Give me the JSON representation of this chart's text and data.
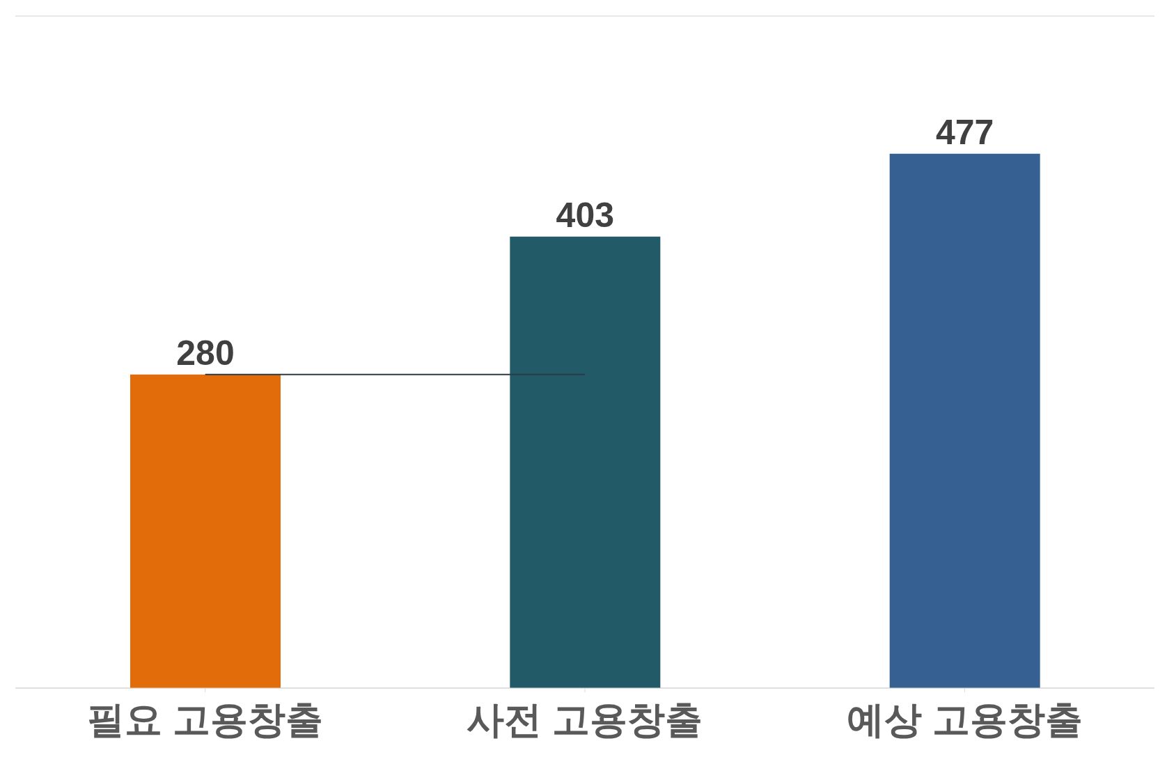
{
  "chart_data": {
    "type": "bar",
    "categories": [
      "필요 고용창출",
      "사전 고용창출",
      "예상 고용창출"
    ],
    "values": [
      280,
      403,
      477
    ],
    "colors": [
      "#e36c0a",
      "#225a68",
      "#366092"
    ],
    "ylim": [
      0,
      600
    ],
    "grid": "y",
    "tick_labels": "x",
    "data_labels": true,
    "ref_lines": [
      {
        "axis": "y",
        "value": 280,
        "label": null,
        "color": "#2d3a45"
      }
    ]
  }
}
